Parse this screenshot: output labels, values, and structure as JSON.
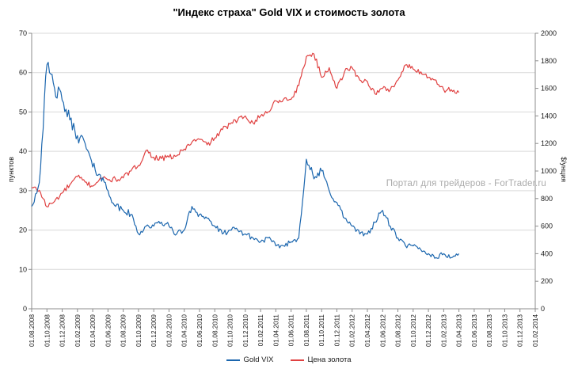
{
  "title": "\"Индекс страха\" Gold VIX и стоимость золота",
  "watermark": "Портал для трейдеров - ForTrader.ru",
  "chart_data": {
    "type": "line",
    "title": "\"Индекс страха\" Gold VIX и стоимость золота",
    "grid": "horizontal",
    "legend_position": "bottom",
    "y_left": {
      "label": "пунктов",
      "min": 0,
      "max": 70,
      "step": 10
    },
    "y_right": {
      "label": "$/унция",
      "min": 0,
      "max": 2000,
      "step": 200
    },
    "x_ticks": [
      "01.08.2008",
      "01.10.2008",
      "01.12.2008",
      "01.02.2009",
      "01.04.2009",
      "01.06.2009",
      "01.08.2009",
      "01.10.2009",
      "01.12.2009",
      "01.02.2010",
      "01.04.2010",
      "01.06.2010",
      "01.08.2010",
      "01.10.2010",
      "01.12.2010",
      "01.02.2011",
      "01.04.2011",
      "01.06.2011",
      "01.08.2011",
      "01.10.2011",
      "01.12.2011",
      "01.02.2012",
      "01.04.2012",
      "01.06.2012",
      "01.08.2012",
      "01.10.2012",
      "01.12.2012",
      "01.02.2013",
      "01.04.2013",
      "01.06.2013",
      "01.08.2013",
      "01.10.2013",
      "01.12.2013",
      "01.02.2014"
    ],
    "months": [
      "08.2008",
      "09.2008",
      "10.2008",
      "11.2008",
      "12.2008",
      "01.2009",
      "02.2009",
      "03.2009",
      "04.2009",
      "05.2009",
      "06.2009",
      "07.2009",
      "08.2009",
      "09.2009",
      "10.2009",
      "11.2009",
      "12.2009",
      "01.2010",
      "02.2010",
      "03.2010",
      "04.2010",
      "05.2010",
      "06.2010",
      "07.2010",
      "08.2010",
      "09.2010",
      "10.2010",
      "11.2010",
      "12.2010",
      "01.2011",
      "02.2011",
      "03.2011",
      "04.2011",
      "05.2011",
      "06.2011",
      "07.2011",
      "08.2011",
      "09.2011",
      "10.2011",
      "11.2011",
      "12.2011",
      "01.2012",
      "02.2012",
      "03.2012",
      "04.2012",
      "05.2012",
      "06.2012",
      "07.2012",
      "08.2012",
      "09.2012",
      "10.2012",
      "11.2012",
      "12.2012",
      "01.2013",
      "02.2013",
      "03.2013",
      "04.2013"
    ],
    "series": [
      {
        "name": "Gold VIX",
        "axis": "left",
        "color": "#1b66ae",
        "values": [
          26,
          32,
          62,
          56,
          53,
          48,
          44,
          42,
          36,
          34,
          30,
          26,
          25,
          24,
          19,
          21,
          21,
          22,
          21,
          19,
          20,
          26,
          24,
          23,
          21,
          19,
          20,
          20,
          19,
          18,
          17,
          18,
          16,
          16,
          17,
          18,
          38,
          33,
          35,
          30,
          27,
          23,
          21,
          19,
          19,
          22,
          25,
          21,
          18,
          16,
          16,
          15,
          14,
          13,
          14,
          13,
          14
        ]
      },
      {
        "name": "Цена золота",
        "axis": "right",
        "color": "#e04141",
        "values": [
          880,
          860,
          740,
          780,
          840,
          900,
          960,
          920,
          890,
          950,
          935,
          940,
          950,
          1000,
          1040,
          1150,
          1100,
          1090,
          1100,
          1110,
          1160,
          1210,
          1230,
          1190,
          1240,
          1300,
          1340,
          1370,
          1400,
          1350,
          1400,
          1430,
          1510,
          1520,
          1520,
          1620,
          1830,
          1850,
          1680,
          1750,
          1600,
          1720,
          1750,
          1660,
          1650,
          1560,
          1600,
          1590,
          1660,
          1770,
          1740,
          1720,
          1680,
          1660,
          1590,
          1590,
          1570
        ]
      }
    ]
  }
}
